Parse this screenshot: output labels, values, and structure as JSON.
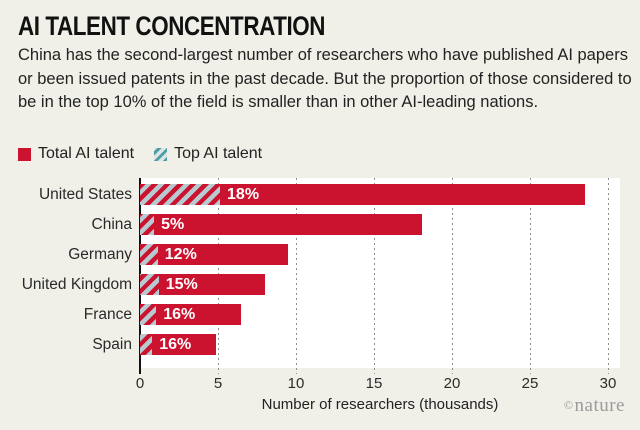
{
  "header": {
    "title": "AI TALENT CONCENTRATION",
    "description": "China has the second-largest number of researchers who have published AI papers or been issued patents in the past decade. But the proportion of those considered to be in the top 10% of the field is smaller than in other AI-leading nations."
  },
  "legend": {
    "items": [
      {
        "label": "Total AI talent",
        "swatch": "solid-red-square"
      },
      {
        "label": "Top AI talent",
        "swatch": "teal-hatch-square"
      }
    ]
  },
  "chart_data": {
    "type": "bar",
    "orientation": "horizontal",
    "title": "AI TALENT CONCENTRATION",
    "categories": [
      "United States",
      "China",
      "Germany",
      "United Kingdom",
      "France",
      "Spain"
    ],
    "series": [
      {
        "name": "Total AI talent",
        "unit": "thousands of researchers",
        "values": [
          28.5,
          18.1,
          9.5,
          8.0,
          6.5,
          4.9
        ]
      },
      {
        "name": "Top AI talent",
        "unit": "% of total",
        "values": [
          18,
          5,
          12,
          15,
          16,
          16
        ]
      }
    ],
    "bar_labels": [
      "18%",
      "5%",
      "12%",
      "15%",
      "16%",
      "16%"
    ],
    "xlabel": "Number of researchers (thousands)",
    "x_ticks": [
      0,
      5,
      10,
      15,
      20,
      25,
      30
    ],
    "xlim": [
      0,
      30.7
    ],
    "grid": "dotted-vertical-gridlines",
    "legend_position": "top-left"
  },
  "footer": {
    "credit_symbol": "©",
    "credit_name": "nature"
  },
  "colors": {
    "background": "#f0efe8",
    "plot_background": "#ffffff",
    "bar_red": "#cb132f",
    "hatch_stripe_on_bar": "#b7cad1",
    "legend_hatch_background": "#dde6e4",
    "legend_hatch_stripe": "#4d9fa6",
    "axis_black": "#111111",
    "grid_gray": "#8e8e8e",
    "credit_gray": "#9b9b9b"
  }
}
